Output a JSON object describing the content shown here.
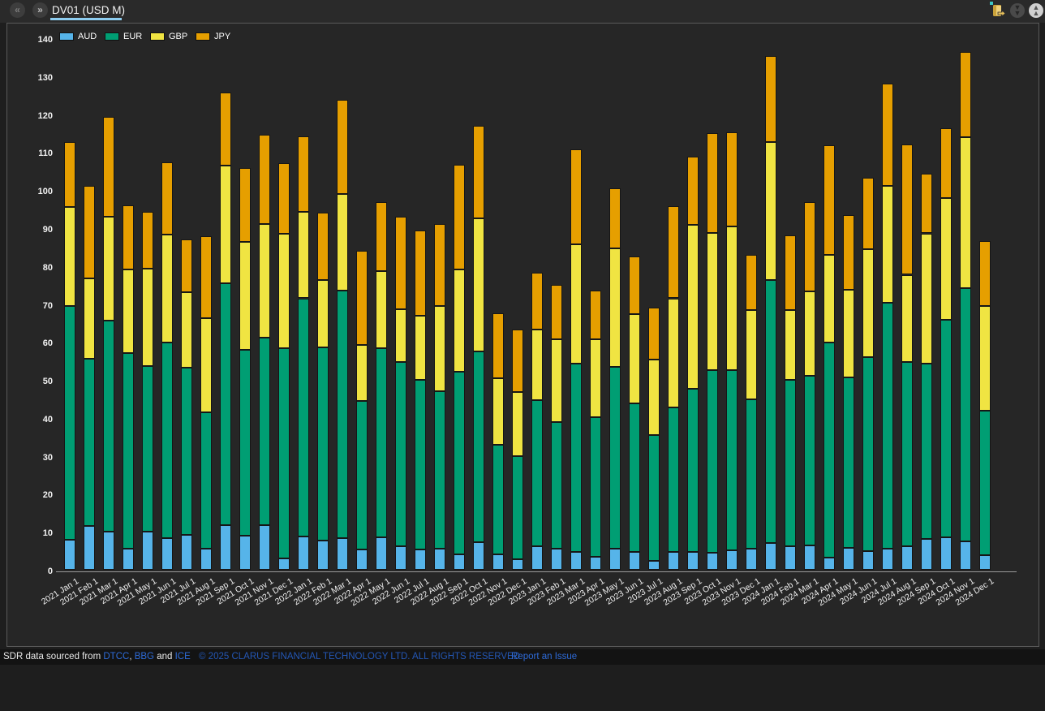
{
  "header": {
    "tab_title": "DV01 (USD M)",
    "nav_prev_glyph": "«",
    "nav_next_glyph": "»"
  },
  "footer": {
    "sourced_prefix": "SDR data sourced from ",
    "link_dtcc": "DTCC",
    "sep_comma": ", ",
    "link_bbg": "BBG",
    "sep_and": " and ",
    "link_ice": "ICE",
    "copyright": "© 2025 CLARUS FINANCIAL TECHNOLOGY LTD. ALL RIGHTS RESERVED",
    "report_link": "Report an Issue",
    "link_color": "#2e6bd8",
    "copyright_color": "#2457b5"
  },
  "chart_data": {
    "type": "bar",
    "stacked": true,
    "title": "",
    "xlabel": "",
    "ylabel": "",
    "ylim": [
      0,
      140
    ],
    "ytick_step": 10,
    "grid": false,
    "legend_position": "top-left",
    "background": "#262626",
    "categories": [
      "2021 Jan 1",
      "2021 Feb 1",
      "2021 Mar 1",
      "2021 Apr 1",
      "2021 May 1",
      "2021 Jun 1",
      "2021 Jul 1",
      "2021 Aug 1",
      "2021 Sep 1",
      "2021 Oct 1",
      "2021 Nov 1",
      "2021 Dec 1",
      "2022 Jan 1",
      "2022 Feb 1",
      "2022 Mar 1",
      "2022 Apr 1",
      "2022 May 1",
      "2022 Jun 1",
      "2022 Jul 1",
      "2022 Aug 1",
      "2022 Sep 1",
      "2022 Oct 1",
      "2022 Nov 1",
      "2022 Dec 1",
      "2023 Jan 1",
      "2023 Feb 1",
      "2023 Mar 1",
      "2023 Apr 1",
      "2023 May 1",
      "2023 Jun 1",
      "2023 Jul 1",
      "2023 Aug 1",
      "2023 Sep 1",
      "2023 Oct 1",
      "2023 Nov 1",
      "2023 Dec 1",
      "2024 Jan 1",
      "2024 Feb 1",
      "2024 Mar 1",
      "2024 Apr 1",
      "2024 May 1",
      "2024 Jun 1",
      "2024 Jul 1",
      "2024 Aug 1",
      "2024 Sep 1",
      "2024 Oct 1",
      "2024 Nov 1",
      "2024 Dec 1"
    ],
    "series": [
      {
        "name": "AUD",
        "color": "#56B4E9",
        "values": [
          8.0,
          11.5,
          10.0,
          5.5,
          10.0,
          8.3,
          9.2,
          5.5,
          11.8,
          9.0,
          11.8,
          2.9,
          8.8,
          7.8,
          8.4,
          5.3,
          8.6,
          6.3,
          5.3,
          5.5,
          4.0,
          7.3,
          4.0,
          2.8,
          6.2,
          5.6,
          4.7,
          3.5,
          5.5,
          4.6,
          2.3,
          4.6,
          4.7,
          4.5,
          5.1,
          5.5,
          7.0,
          6.3,
          6.5,
          3.3,
          5.8,
          4.9,
          5.5,
          6.2,
          8.1,
          8.5,
          7.4,
          3.8
        ]
      },
      {
        "name": "EUR",
        "color": "#009E73",
        "values": [
          61.5,
          44.1,
          55.6,
          51.6,
          43.7,
          51.6,
          44.1,
          35.9,
          63.6,
          49.0,
          49.4,
          55.5,
          62.7,
          50.7,
          65.1,
          39.2,
          49.8,
          48.5,
          44.7,
          41.5,
          48.1,
          50.2,
          28.9,
          27.1,
          38.5,
          33.2,
          49.5,
          36.7,
          47.9,
          39.2,
          33.1,
          38.2,
          43.0,
          48.0,
          47.4,
          39.3,
          69.3,
          43.7,
          44.6,
          56.5,
          44.9,
          51.2,
          64.8,
          48.5,
          46.2,
          57.3,
          66.8,
          38.0
        ]
      },
      {
        "name": "GBP",
        "color": "#F0E442",
        "values": [
          26.0,
          21.2,
          27.3,
          21.9,
          25.5,
          28.4,
          19.7,
          24.8,
          31.0,
          28.3,
          29.8,
          30.1,
          22.8,
          17.8,
          25.5,
          14.7,
          20.2,
          13.9,
          16.9,
          22.4,
          26.9,
          35.0,
          17.5,
          16.9,
          18.5,
          22.0,
          31.6,
          20.6,
          31.3,
          23.5,
          20.0,
          28.7,
          43.1,
          36.3,
          38.0,
          23.5,
          36.3,
          18.5,
          22.2,
          23.1,
          23.0,
          28.3,
          30.9,
          23.0,
          34.3,
          32.2,
          39.7,
          27.6
        ]
      },
      {
        "name": "JPY",
        "color": "#E69F00",
        "values": [
          17.2,
          24.2,
          26.4,
          17.0,
          15.1,
          19.0,
          14.1,
          21.7,
          19.3,
          19.6,
          23.5,
          18.6,
          19.8,
          17.8,
          24.7,
          24.8,
          18.2,
          24.2,
          22.4,
          21.6,
          27.6,
          24.4,
          17.2,
          16.5,
          15.1,
          14.3,
          24.9,
          12.7,
          15.7,
          15.3,
          13.6,
          24.2,
          18.0,
          26.2,
          24.7,
          14.6,
          22.7,
          19.5,
          23.5,
          28.9,
          19.7,
          18.8,
          26.8,
          34.4,
          15.8,
          18.2,
          22.4,
          17.1
        ]
      }
    ]
  }
}
